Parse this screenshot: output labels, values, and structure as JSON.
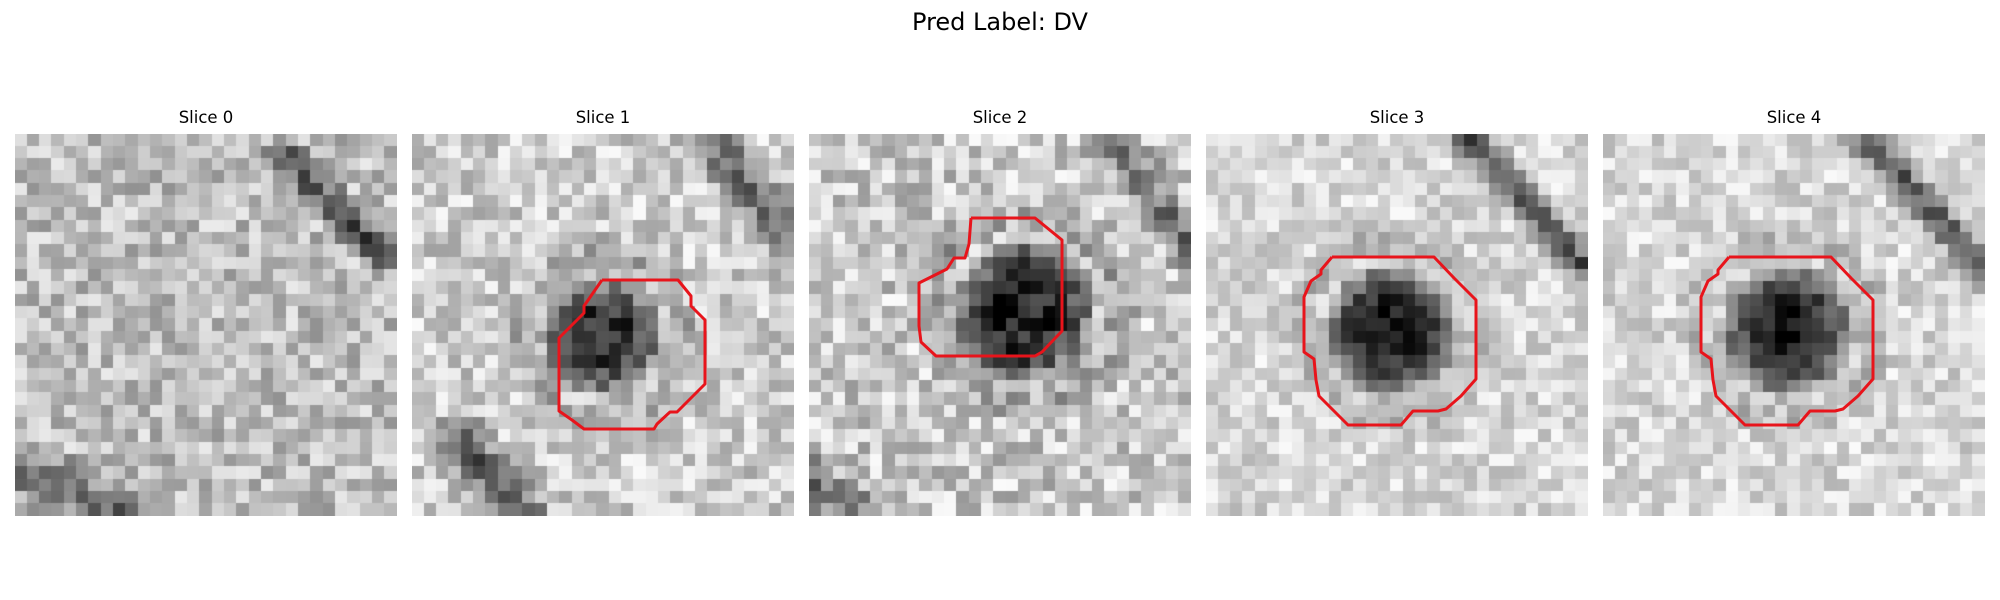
{
  "figure": {
    "title": "Pred Label: DV"
  },
  "colors": {
    "contour": "#e8141b",
    "background": "#ffffff"
  },
  "panels": [
    {
      "title": "Slice 0",
      "has_contour": false
    },
    {
      "title": "Slice 1",
      "has_contour": true
    },
    {
      "title": "Slice 2",
      "has_contour": true
    },
    {
      "title": "Slice 3",
      "has_contour": true
    },
    {
      "title": "Slice 4",
      "has_contour": true
    }
  ]
}
